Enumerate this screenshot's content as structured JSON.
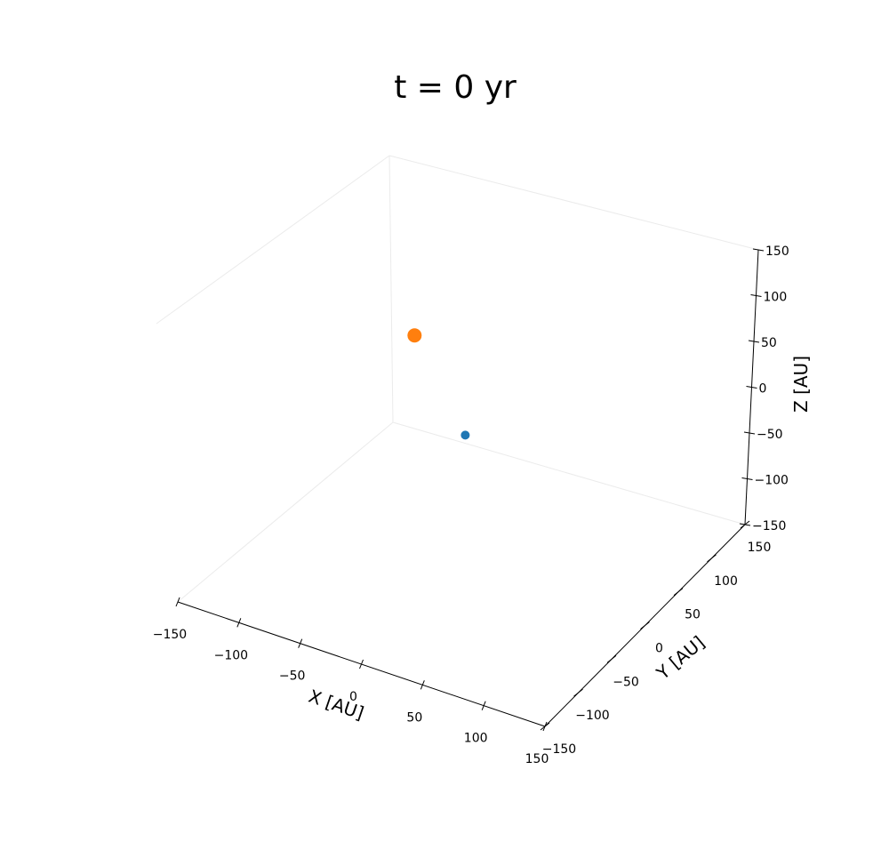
{
  "chart_data": {
    "type": "scatter",
    "title": "t = 0 yr",
    "projection": "3d",
    "grid": false,
    "x_axis": {
      "label": "X [AU]",
      "lim": [
        -150,
        150
      ],
      "ticks": [
        -150,
        -100,
        -50,
        0,
        50,
        100,
        150
      ],
      "tick_labels": [
        "−150",
        "−100",
        "−50",
        "0",
        "50",
        "100",
        "150"
      ]
    },
    "y_axis": {
      "label": "Y [AU]",
      "lim": [
        -150,
        150
      ],
      "ticks": [
        -150,
        -100,
        -50,
        0,
        50,
        100,
        150
      ],
      "tick_labels": [
        "−150",
        "−100",
        "−50",
        "0",
        "50",
        "100",
        "150"
      ]
    },
    "z_axis": {
      "label": "Z [AU]",
      "lim": [
        -150,
        150
      ],
      "ticks": [
        -150,
        -100,
        -50,
        0,
        50,
        100,
        150
      ],
      "tick_labels": [
        "−150",
        "−100",
        "−50",
        "0",
        "50",
        "100",
        "150"
      ]
    },
    "series": [
      {
        "color": "#1f77b4",
        "marker": "circle",
        "points": [
          {
            "x": 0,
            "y": 0,
            "z": 0
          }
        ]
      },
      {
        "color": "#ff7f0e",
        "marker": "circle",
        "points": [
          {
            "x": -100,
            "y": 100,
            "z": 0
          }
        ]
      }
    ]
  }
}
